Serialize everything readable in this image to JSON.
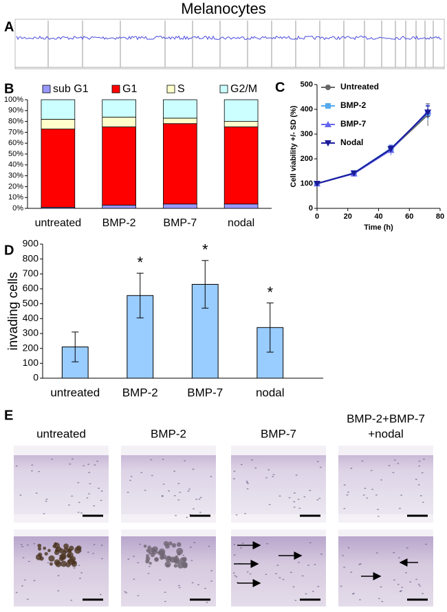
{
  "title": "Melanocytes",
  "panel_labels": [
    "A",
    "B",
    "C",
    "D",
    "E"
  ],
  "chart_data": [
    {
      "type": "bar",
      "stacked": true,
      "categories": [
        "untreated",
        "BMP-2",
        "BMP-7",
        "nodal"
      ],
      "series": [
        {
          "name": "sub G1",
          "color": "#9999ff",
          "values": [
            1,
            3,
            4,
            4
          ]
        },
        {
          "name": "G1",
          "color": "#ff0000",
          "values": [
            72,
            72,
            74,
            71
          ]
        },
        {
          "name": "S",
          "color": "#ffffcc",
          "values": [
            9,
            9,
            5,
            5
          ]
        },
        {
          "name": "G2/M",
          "color": "#ccffff",
          "values": [
            18,
            16,
            17,
            20
          ]
        }
      ],
      "ylim": [
        0,
        100
      ],
      "yticks": [
        {
          "value": 0,
          "label": "0%"
        },
        {
          "value": 10,
          "label": "10%"
        },
        {
          "value": 20,
          "label": "20%"
        },
        {
          "value": 30,
          "label": "30%"
        },
        {
          "value": 40,
          "label": "40%"
        },
        {
          "value": 50,
          "label": "50%"
        },
        {
          "value": 60,
          "label": "60%"
        },
        {
          "value": 70,
          "label": "70%"
        },
        {
          "value": 80,
          "label": "80%"
        },
        {
          "value": 90,
          "label": "90%"
        },
        {
          "value": 100,
          "label": "100%"
        }
      ],
      "legend": "top"
    },
    {
      "type": "line",
      "x": [
        0,
        24,
        48,
        72
      ],
      "series": [
        {
          "name": "Untreated",
          "color": "#666666",
          "marker": "circle",
          "values": [
            100,
            142,
            238,
            378
          ],
          "errors": [
            4,
            6,
            12,
            45
          ]
        },
        {
          "name": "BMP-2",
          "color": "#55aaee",
          "marker": "square",
          "values": [
            100,
            143,
            242,
            385
          ],
          "errors": [
            4,
            6,
            14,
            30
          ]
        },
        {
          "name": "BMP-7",
          "color": "#6666ee",
          "marker": "triangle-up",
          "values": [
            100,
            140,
            235,
            392
          ],
          "errors": [
            4,
            6,
            20,
            25
          ]
        },
        {
          "name": "Nodal",
          "color": "#1a1a99",
          "marker": "triangle-down",
          "values": [
            100,
            142,
            240,
            388
          ],
          "errors": [
            4,
            6,
            12,
            25
          ]
        }
      ],
      "xlabel": "Time (h)",
      "ylabel": "Cell viability +/- SD (%)",
      "xlim": [
        0,
        80
      ],
      "xticks": [
        0,
        20,
        40,
        60,
        80
      ],
      "ylim": [
        0,
        500
      ],
      "yticks": [
        0,
        100,
        200,
        300,
        400,
        500
      ],
      "legend": "upper left"
    },
    {
      "type": "bar",
      "categories": [
        "untreated",
        "BMP-2",
        "BMP-7",
        "nodal"
      ],
      "values": [
        210,
        555,
        630,
        340
      ],
      "errors": [
        100,
        150,
        160,
        165
      ],
      "significance": [
        null,
        "*",
        "*",
        "*"
      ],
      "color": "#99ccff",
      "ylabel": "invading cells",
      "ylim": [
        0,
        900
      ],
      "yticks": [
        0,
        100,
        200,
        300,
        400,
        500,
        600,
        700,
        800,
        900
      ]
    }
  ],
  "panel_e": {
    "columns": [
      [
        "untreated"
      ],
      [
        "BMP-2"
      ],
      [
        "BMP-7"
      ],
      [
        "BMP-2+BMP-7",
        "+nodal"
      ]
    ]
  }
}
